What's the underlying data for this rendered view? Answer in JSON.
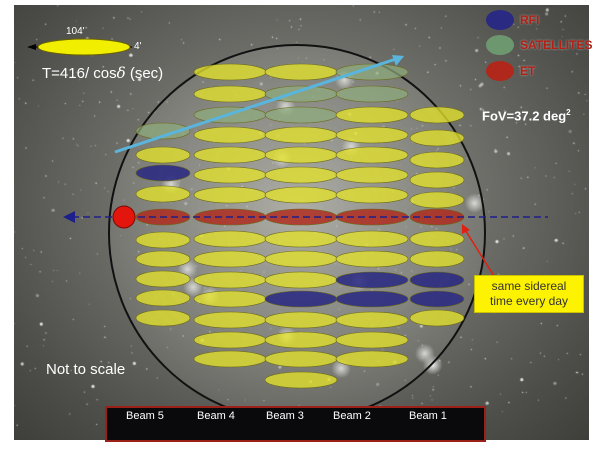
{
  "legend": {
    "items": [
      {
        "label": "RFI",
        "color": "#2a2a82"
      },
      {
        "label": "SATELLITES",
        "color": "#6f9e72"
      },
      {
        "label": "ET",
        "color": "#b0281c"
      }
    ]
  },
  "scale_indicator": {
    "major_axis_label": "104'",
    "minor_axis_label": "4'",
    "formula_prefix": "T=416/ cos",
    "formula_symbol": "δ",
    "formula_unit": "(sec)"
  },
  "fov": {
    "label": "FoV=37.2 deg",
    "exponent": "2"
  },
  "callout": {
    "text": "same sidereal time every day"
  },
  "note": "Not to scale",
  "beams": {
    "labels": [
      "Beam 5",
      "Beam 4",
      "Beam 3",
      "Beam 2",
      "Beam 1"
    ]
  },
  "colors": {
    "beam_fill": "#e3e12c",
    "rfi": "#2a2a82",
    "satellite": "#8fae7e",
    "et": "#b0281c",
    "track": "#1d1f8a",
    "satellite_track": "#5ab5dc",
    "callout_arrow": "#e02010",
    "et_marker": "#e3160d"
  }
}
